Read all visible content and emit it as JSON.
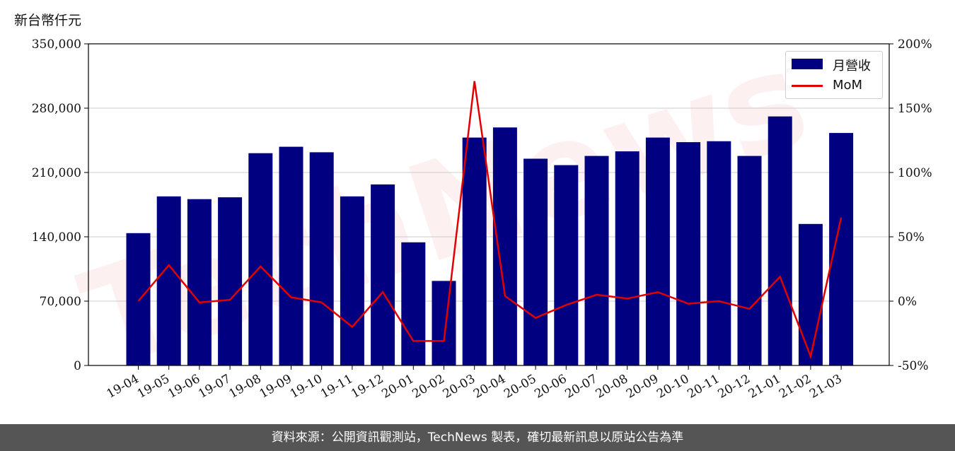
{
  "unit_label": "新台幣仟元",
  "footer": "資料來源：公開資訊觀測站，TechNews 製表，確切最新訊息以原站公告為準",
  "watermark": "TechNews",
  "chart_data": {
    "type": "bar",
    "categories": [
      "19-04",
      "19-05",
      "19-06",
      "19-07",
      "19-08",
      "19-09",
      "19-10",
      "19-11",
      "19-12",
      "20-01",
      "20-02",
      "20-03",
      "20-04",
      "20-05",
      "20-06",
      "20-07",
      "20-08",
      "20-09",
      "20-10",
      "20-11",
      "20-12",
      "21-01",
      "21-02",
      "21-03"
    ],
    "series": [
      {
        "name": "月營收",
        "type": "bar",
        "axis": "left",
        "color": "#000080",
        "values": [
          144000,
          184000,
          181000,
          183000,
          231000,
          238000,
          232000,
          184000,
          197000,
          134000,
          92000,
          248000,
          259000,
          225000,
          218000,
          228000,
          233000,
          248000,
          243000,
          244000,
          228000,
          271000,
          154000,
          253000
        ]
      },
      {
        "name": "MoM",
        "type": "line",
        "axis": "right",
        "color": "#e00000",
        "values": [
          0,
          28,
          -1,
          1,
          27,
          3,
          -1,
          -20,
          7,
          -31,
          -31,
          171,
          4,
          -13,
          -3,
          5,
          2,
          7,
          -2,
          0,
          -6,
          19,
          -43,
          65
        ]
      }
    ],
    "y_left": {
      "min": 0,
      "max": 350000,
      "ticks": [
        "0",
        "70,000",
        "140,000",
        "210,000",
        "280,000",
        "350,000"
      ],
      "tick_values": [
        0,
        70000,
        140000,
        210000,
        280000,
        350000
      ]
    },
    "y_right": {
      "min": -50,
      "max": 200,
      "ticks": [
        "-50%",
        "0%",
        "50%",
        "100%",
        "150%",
        "200%"
      ],
      "tick_values": [
        -50,
        0,
        50,
        100,
        150,
        200
      ]
    },
    "grid": "horizontal",
    "legend_position": "top-right"
  }
}
